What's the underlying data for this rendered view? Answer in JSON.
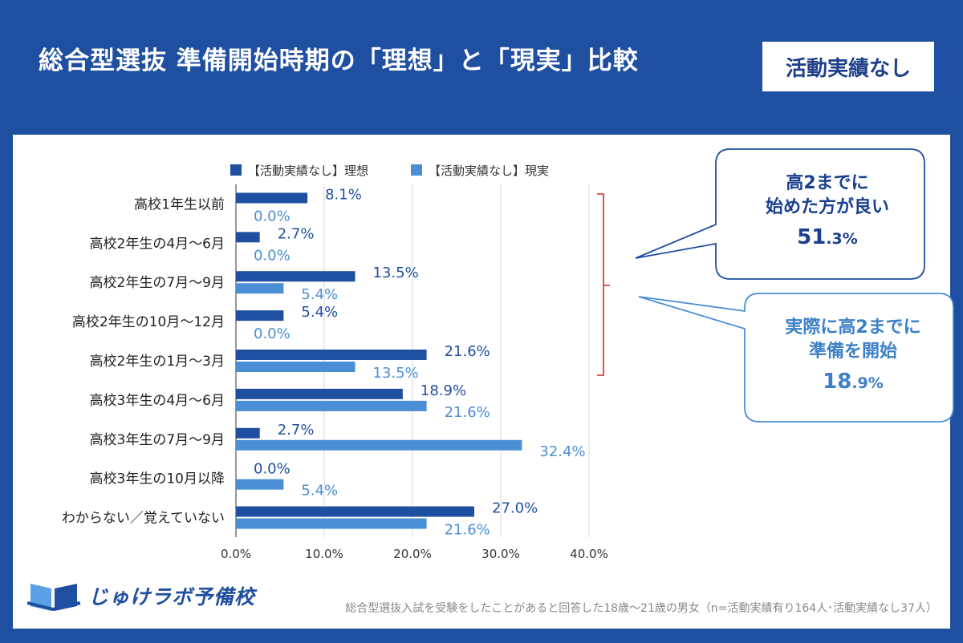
{
  "header": {
    "title": "総合型選抜 準備開始時期の「理想」と「現実」比較",
    "badge": "活動実績なし"
  },
  "callouts": [
    {
      "lines": [
        "高2までに",
        "始めた方が良い"
      ],
      "pct_int": "51",
      "pct_dec": ".3%",
      "color": "#1a3f8f"
    },
    {
      "lines": [
        "実際に高2までに",
        "準備を開始"
      ],
      "pct_int": "18",
      "pct_dec": ".9%",
      "color": "#3d7fc7"
    }
  ],
  "logo": {
    "text": "じゅけラボ予備校",
    "icon": "book-icon"
  },
  "footnote": "総合型選抜入試を受験をしたことがあると回答した18歳～21歳の男女（n=活動実績有り164人･活動実績なし37人）",
  "colors": {
    "ideal": "#1f4fa0",
    "reality": "#4a8fd6",
    "bracket": "#d8262b"
  },
  "chart_data": {
    "type": "bar",
    "orientation": "horizontal",
    "categories": [
      "高校1年生以前",
      "高校2年生の4月～6月",
      "高校2年生の7月～9月",
      "高校2年生の10月～12月",
      "高校2年生の1月～3月",
      "高校3年生の4月～6月",
      "高校3年生の7月～9月",
      "高校3年生の10月以降",
      "わからない／覚えていない"
    ],
    "series": [
      {
        "name": "【活動実績なし】理想",
        "values": [
          8.1,
          2.7,
          13.5,
          5.4,
          21.6,
          18.9,
          2.7,
          0.0,
          27.0
        ],
        "labels": [
          "8.1%",
          "2.7%",
          "13.5%",
          "5.4%",
          "21.6%",
          "18.9%",
          "2.7%",
          "0.0%",
          "27.0%"
        ]
      },
      {
        "name": "【活動実績なし】現実",
        "values": [
          0.0,
          0.0,
          5.4,
          0.0,
          13.5,
          21.6,
          32.4,
          5.4,
          21.6
        ],
        "labels": [
          "0.0%",
          "0.0%",
          "5.4%",
          "0.0%",
          "13.5%",
          "21.6%",
          "32.4%",
          "5.4%",
          "21.6%"
        ]
      }
    ],
    "xlim": [
      0,
      40
    ],
    "xticks": [
      "0.0%",
      "10.0%",
      "20.0%",
      "30.0%",
      "40.0%"
    ],
    "grid": true,
    "legend_position": "top"
  }
}
